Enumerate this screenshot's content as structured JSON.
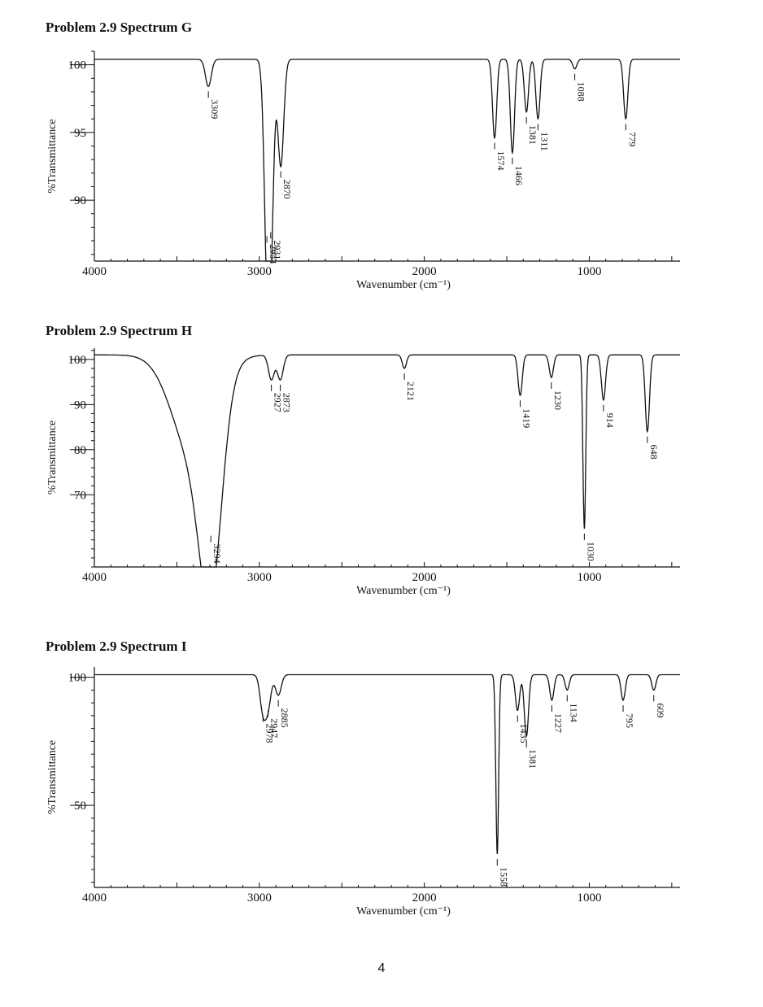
{
  "page": {
    "number": "4"
  },
  "chart_data": [
    {
      "type": "line",
      "title": "Problem 2.9 Spectrum G",
      "xlabel": "Wavenumber (cm⁻¹)",
      "ylabel": "%Transmittance",
      "xlim": [
        4000,
        450
      ],
      "ylim": [
        85.5,
        101
      ],
      "x_ticks": [
        "4000",
        "3000",
        "2000",
        "1000"
      ],
      "y_ticks": [
        "100",
        "95",
        "90"
      ],
      "baseline": 100.4,
      "peaks": [
        {
          "x": 3309,
          "y": 98.4,
          "label": "3309"
        },
        {
          "x": 2954,
          "y": 87.7,
          "label": "2954"
        },
        {
          "x": 2931,
          "y": 88.0,
          "label": "2931"
        },
        {
          "x": 2870,
          "y": 92.5,
          "label": "2870"
        },
        {
          "x": 1574,
          "y": 94.6,
          "label": "1574"
        },
        {
          "x": 1466,
          "y": 93.5,
          "label": "1466"
        },
        {
          "x": 1381,
          "y": 96.5,
          "label": "1381"
        },
        {
          "x": 1311,
          "y": 96.0,
          "label": "1311"
        },
        {
          "x": 1088,
          "y": 99.7,
          "label": "1088"
        },
        {
          "x": 779,
          "y": 96.0,
          "label": "779"
        }
      ]
    },
    {
      "type": "line",
      "title": "Problem 2.9 Spectrum H",
      "xlabel": "Wavenumber (cm⁻¹)",
      "ylabel": "%Transmittance",
      "xlim": [
        4000,
        450
      ],
      "ylim": [
        54,
        102.5
      ],
      "x_ticks": [
        "4000",
        "3000",
        "2000",
        "1000"
      ],
      "y_ticks": [
        "100",
        "90",
        "80",
        "70"
      ],
      "baseline": 101,
      "peaks": [
        {
          "x": 3294,
          "y": 62,
          "label": "3294"
        },
        {
          "x": 2927,
          "y": 95.5,
          "label": "2927"
        },
        {
          "x": 2873,
          "y": 95.5,
          "label": "2873"
        },
        {
          "x": 2121,
          "y": 98.0,
          "label": "2121"
        },
        {
          "x": 1419,
          "y": 92.0,
          "label": "1419"
        },
        {
          "x": 1230,
          "y": 96.0,
          "label": "1230"
        },
        {
          "x": 1030,
          "y": 62.5,
          "label": "1030"
        },
        {
          "x": 914,
          "y": 91.0,
          "label": "914"
        },
        {
          "x": 648,
          "y": 84.0,
          "label": "648"
        }
      ]
    },
    {
      "type": "line",
      "title": "Problem 2.9 Spectrum I",
      "xlabel": "Wavenumber (cm⁻¹)",
      "ylabel": "%Transmittance",
      "xlim": [
        4000,
        450
      ],
      "ylim": [
        18,
        104
      ],
      "x_ticks": [
        "4000",
        "3000",
        "2000",
        "1000"
      ],
      "y_ticks": [
        "100",
        "50"
      ],
      "baseline": 101,
      "peaks": [
        {
          "x": 2978,
          "y": 87,
          "label": "2978"
        },
        {
          "x": 2947,
          "y": 89,
          "label": "2947"
        },
        {
          "x": 2885,
          "y": 93,
          "label": "2885"
        },
        {
          "x": 1558,
          "y": 31,
          "label": "1558"
        },
        {
          "x": 1435,
          "y": 87,
          "label": "1435"
        },
        {
          "x": 1381,
          "y": 77,
          "label": "1381"
        },
        {
          "x": 1227,
          "y": 91,
          "label": "1227"
        },
        {
          "x": 1134,
          "y": 95,
          "label": "1134"
        },
        {
          "x": 795,
          "y": 91,
          "label": "795"
        },
        {
          "x": 609,
          "y": 95,
          "label": "609"
        }
      ]
    }
  ]
}
